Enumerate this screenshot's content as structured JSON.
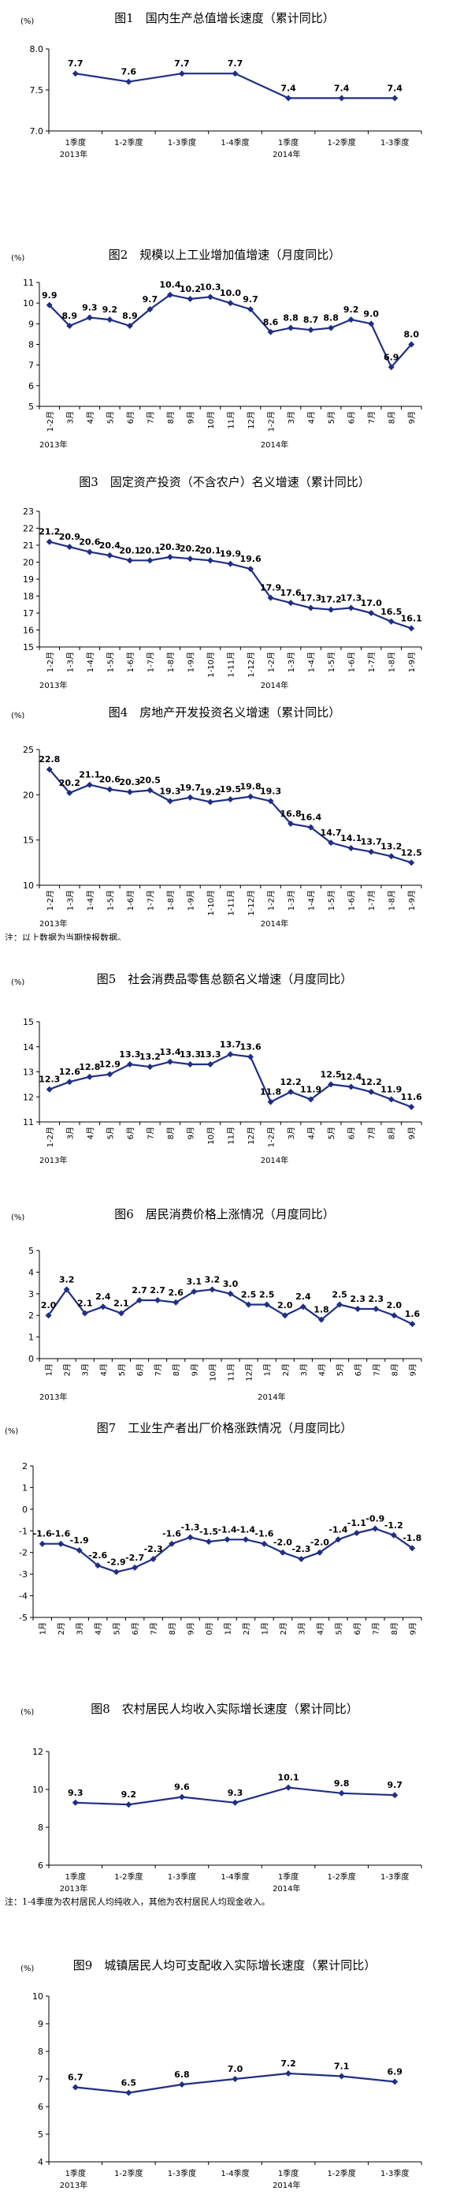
{
  "chart_data": [
    {
      "type": "line",
      "title": "图1　国内生产总值增长速度（累计同比）",
      "yunit": "(%)",
      "ylim": [
        7.0,
        8.0
      ],
      "yticks": [
        "7.0",
        "7.5",
        "8.0"
      ],
      "grid": false,
      "categories": [
        "1季度",
        "1-2季度",
        "1-3季度",
        "1-4季度",
        "1季度",
        "1-2季度",
        "1-3季度"
      ],
      "x_rotated": false,
      "year_labels": [
        {
          "text": "2013年",
          "at": 0
        },
        {
          "text": "2014年",
          "at": 4
        }
      ],
      "series": [
        {
          "values": [
            7.7,
            7.6,
            7.7,
            7.7,
            7.4,
            7.4,
            7.4
          ]
        }
      ],
      "labels": [
        "7.7",
        "7.6",
        "7.7",
        "7.7",
        "7.4",
        "7.4",
        "7.4"
      ],
      "note": ""
    },
    {
      "type": "line",
      "title": "图2　规模以上工业增加值增速（月度同比）",
      "yunit": "(%)",
      "ylim": [
        5,
        11
      ],
      "yticks": [
        "5",
        "6",
        "7",
        "8",
        "9",
        "10",
        "11"
      ],
      "grid": false,
      "categories": [
        "1-2月",
        "3月",
        "4月",
        "5月",
        "6月",
        "7月",
        "8月",
        "9月",
        "10月",
        "11月",
        "12月",
        "1-2月",
        "3月",
        "4月",
        "5月",
        "6月",
        "7月",
        "8月",
        "9月"
      ],
      "x_rotated": true,
      "year_labels": [
        {
          "text": "2013年",
          "at": 0
        },
        {
          "text": "2014年",
          "at": 11
        }
      ],
      "series": [
        {
          "values": [
            9.9,
            8.9,
            9.3,
            9.2,
            8.9,
            9.7,
            10.4,
            10.2,
            10.3,
            10.0,
            9.7,
            8.6,
            8.8,
            8.7,
            8.8,
            9.2,
            9.0,
            6.9,
            8.0
          ]
        }
      ],
      "labels": [
        "9.9",
        "8.9",
        "9.3",
        "9.2",
        "8.9",
        "9.7",
        "10.4",
        "10.2",
        "10.3",
        "10.0",
        "9.7",
        "8.6",
        "8.8",
        "8.7",
        "8.8",
        "9.2",
        "9.0",
        "6.9",
        "8.0"
      ],
      "note": ""
    },
    {
      "type": "line",
      "title": "图3　固定资产投资（不含农户）名义增速（累计同比）",
      "yunit": "",
      "ylim": [
        15,
        23
      ],
      "yticks": [
        "15",
        "16",
        "17",
        "18",
        "19",
        "20",
        "21",
        "22",
        "23"
      ],
      "grid": false,
      "categories": [
        "1-2月",
        "1-3月",
        "1-4月",
        "1-5月",
        "1-6月",
        "1-7月",
        "1-8月",
        "1-9月",
        "1-10月",
        "1-11月",
        "1-12月",
        "1-2月",
        "1-3月",
        "1-4月",
        "1-5月",
        "1-6月",
        "1-7月",
        "1-8月",
        "1-9月"
      ],
      "x_rotated": true,
      "year_labels": [
        {
          "text": "2013年",
          "at": 0
        },
        {
          "text": "2014年",
          "at": 11
        }
      ],
      "series": [
        {
          "values": [
            21.2,
            20.9,
            20.6,
            20.4,
            20.1,
            20.1,
            20.3,
            20.2,
            20.1,
            19.9,
            19.6,
            17.9,
            17.6,
            17.3,
            17.2,
            17.3,
            17.0,
            16.5,
            16.1
          ]
        }
      ],
      "labels": [
        "21.2",
        "20.9",
        "20.6",
        "20.4",
        "20.1",
        "20.1",
        "20.3",
        "20.2",
        "20.1",
        "19.9",
        "19.6",
        "17.9",
        "17.6",
        "17.3",
        "17.2",
        "17.3",
        "17.0",
        "16.5",
        "16.1"
      ],
      "note": "注：以上数据为当期快报数据。"
    },
    {
      "type": "line",
      "title": "图4　房地产开发投资名义增速（累计同比）",
      "yunit": "(%)",
      "ylim": [
        10,
        25
      ],
      "yticks": [
        "10",
        "15",
        "20",
        "25"
      ],
      "grid": false,
      "categories": [
        "1-2月",
        "1-3月",
        "1-4月",
        "1-5月",
        "1-6月",
        "1-7月",
        "1-8月",
        "1-9月",
        "1-10月",
        "1-11月",
        "1-12月",
        "1-2月",
        "1-3月",
        "1-4月",
        "1-5月",
        "1-6月",
        "1-7月",
        "1-8月",
        "1-9月"
      ],
      "x_rotated": true,
      "year_labels": [
        {
          "text": "2013年",
          "at": 0
        },
        {
          "text": "2014年",
          "at": 11
        }
      ],
      "series": [
        {
          "values": [
            22.8,
            20.2,
            21.1,
            20.6,
            20.3,
            20.5,
            19.3,
            19.7,
            19.2,
            19.5,
            19.8,
            19.3,
            16.8,
            16.4,
            14.7,
            14.1,
            13.7,
            13.2,
            12.5
          ]
        }
      ],
      "labels": [
        "22.8",
        "20.2",
        "21.1",
        "20.6",
        "20.3",
        "20.5",
        "19.3",
        "19.7",
        "19.2",
        "19.5",
        "19.8",
        "19.3",
        "16.8",
        "16.4",
        "14.7",
        "14.1",
        "13.7",
        "13.2",
        "12.5"
      ],
      "note": "注：以上数据为当期快报数据。"
    },
    {
      "type": "line",
      "title": "图5　社会消费品零售总额名义增速（月度同比）",
      "yunit": "(%)",
      "ylim": [
        11,
        15
      ],
      "yticks": [
        "11",
        "12",
        "13",
        "14",
        "15"
      ],
      "grid": false,
      "categories": [
        "1-2月",
        "3月",
        "4月",
        "5月",
        "6月",
        "7月",
        "8月",
        "9月",
        "10月",
        "11月",
        "12月",
        "1-2月",
        "3月",
        "4月",
        "5月",
        "6月",
        "7月",
        "8月",
        "9月"
      ],
      "x_rotated": true,
      "year_labels": [
        {
          "text": "2013年",
          "at": 0
        },
        {
          "text": "2014年",
          "at": 11
        }
      ],
      "series": [
        {
          "values": [
            12.3,
            12.6,
            12.8,
            12.9,
            13.3,
            13.2,
            13.4,
            13.3,
            13.3,
            13.7,
            13.6,
            11.8,
            12.2,
            11.9,
            12.5,
            12.4,
            12.2,
            11.9,
            11.6
          ]
        }
      ],
      "labels": [
        "12.3",
        "12.6",
        "12.8",
        "12.9",
        "13.3",
        "13.2",
        "13.4",
        "13.3",
        "13.3",
        "13.7",
        "13.6",
        "11.8",
        "12.2",
        "11.9",
        "12.5",
        "12.4",
        "12.2",
        "11.9",
        "11.6"
      ],
      "note": ""
    },
    {
      "type": "line",
      "title": "图6　居民消费价格上涨情况（月度同比）",
      "yunit": "(%)",
      "ylim": [
        0,
        5
      ],
      "yticks": [
        "0",
        "1",
        "2",
        "3",
        "4",
        "5"
      ],
      "grid": false,
      "categories": [
        "1月",
        "2月",
        "3月",
        "4月",
        "5月",
        "6月",
        "7月",
        "8月",
        "9月",
        "10月",
        "11月",
        "12月",
        "1月",
        "2月",
        "3月",
        "4月",
        "5月",
        "6月",
        "7月",
        "8月",
        "9月"
      ],
      "x_rotated": true,
      "year_labels": [
        {
          "text": "2013年",
          "at": 0
        },
        {
          "text": "2014年",
          "at": 12
        }
      ],
      "series": [
        {
          "values": [
            2.0,
            3.2,
            2.1,
            2.4,
            2.1,
            2.7,
            2.7,
            2.6,
            3.1,
            3.2,
            3.0,
            2.5,
            2.5,
            2.0,
            2.4,
            1.8,
            2.5,
            2.3,
            2.3,
            2.0,
            1.6
          ]
        }
      ],
      "labels": [
        "2.0",
        "3.2",
        "2.1",
        "2.4",
        "2.1",
        "2.7",
        "2.7",
        "2.6",
        "3.1",
        "3.2",
        "3.0",
        "2.5",
        "2.5",
        "2.0",
        "2.4",
        "1.8",
        "2.5",
        "2.3",
        "2.3",
        "2.0",
        "1.6"
      ],
      "note": ""
    },
    {
      "type": "line",
      "title": "图7　工业生产者出厂价格涨跌情况（月度同比）",
      "yunit": "(%)",
      "ylim": [
        -5,
        2
      ],
      "yticks": [
        "-5",
        "-4",
        "-3",
        "-2",
        "-1",
        "0",
        "1",
        "2"
      ],
      "grid": false,
      "categories": [
        "1月",
        "2月",
        "3月",
        "4月",
        "5月",
        "6月",
        "7月",
        "8月",
        "9月",
        "10月",
        "11月",
        "12月",
        "1月",
        "2月",
        "3月",
        "4月",
        "5月",
        "6月",
        "7月",
        "8月",
        "9月"
      ],
      "x_rotated": true,
      "year_labels": [
        {
          "text": "2013年",
          "at": 0
        },
        {
          "text": "2014年",
          "at": 12
        }
      ],
      "series": [
        {
          "values": [
            -1.6,
            -1.6,
            -1.9,
            -2.6,
            -2.9,
            -2.7,
            -2.3,
            -1.6,
            -1.3,
            -1.5,
            -1.4,
            -1.4,
            -1.6,
            -2.0,
            -2.3,
            -2.0,
            -1.4,
            -1.1,
            -0.9,
            -1.2,
            -1.8
          ]
        }
      ],
      "labels": [
        "-1.6",
        "-1.6",
        "-1.9",
        "-2.6",
        "-2.9",
        "-2.7",
        "-2.3",
        "-1.6",
        "-1.3",
        "-1.5",
        "-1.4",
        "-1.4",
        "-1.6",
        "-2.0",
        "-2.3",
        "-2.0",
        "-1.4",
        "-1.1",
        "-0.9",
        "-1.2",
        "-1.8"
      ],
      "note": ""
    },
    {
      "type": "line",
      "title": "图8　农村居民人均收入实际增长速度（累计同比）",
      "yunit": "(%)",
      "ylim": [
        6,
        12
      ],
      "yticks": [
        "6",
        "8",
        "10",
        "12"
      ],
      "grid": false,
      "categories": [
        "1季度",
        "1-2季度",
        "1-3季度",
        "1-4季度",
        "1季度",
        "1-2季度",
        "1-3季度"
      ],
      "x_rotated": false,
      "year_labels": [
        {
          "text": "2013年",
          "at": 0
        },
        {
          "text": "2014年",
          "at": 4
        }
      ],
      "series": [
        {
          "values": [
            9.3,
            9.2,
            9.6,
            9.3,
            10.1,
            9.8,
            9.7
          ]
        }
      ],
      "labels": [
        "9.3",
        "9.2",
        "9.6",
        "9.3",
        "10.1",
        "9.8",
        "9.7"
      ],
      "note": "注：1-4季度为农村居民人均纯收入，其他为农村居民人均现金收入。"
    },
    {
      "type": "line",
      "title": "图9　城镇居民人均可支配收入实际增长速度（累计同比）",
      "yunit": "(%)",
      "ylim": [
        4,
        10
      ],
      "yticks": [
        "4",
        "5",
        "6",
        "7",
        "8",
        "9",
        "10"
      ],
      "grid": false,
      "categories": [
        "1季度",
        "1-2季度",
        "1-3季度",
        "1-4季度",
        "1季度",
        "1-2季度",
        "1-3季度"
      ],
      "x_rotated": false,
      "year_labels": [
        {
          "text": "2013年",
          "at": 0
        },
        {
          "text": "2014年",
          "at": 4
        }
      ],
      "series": [
        {
          "values": [
            6.7,
            6.5,
            6.8,
            7.0,
            7.2,
            7.1,
            6.9
          ]
        }
      ],
      "labels": [
        "6.7",
        "6.5",
        "6.8",
        "7.0",
        "7.2",
        "7.1",
        "6.9"
      ],
      "note": ""
    }
  ],
  "colors": {
    "line": "#1f2f86",
    "marker": "#1f2f86",
    "axis": "#000000"
  }
}
